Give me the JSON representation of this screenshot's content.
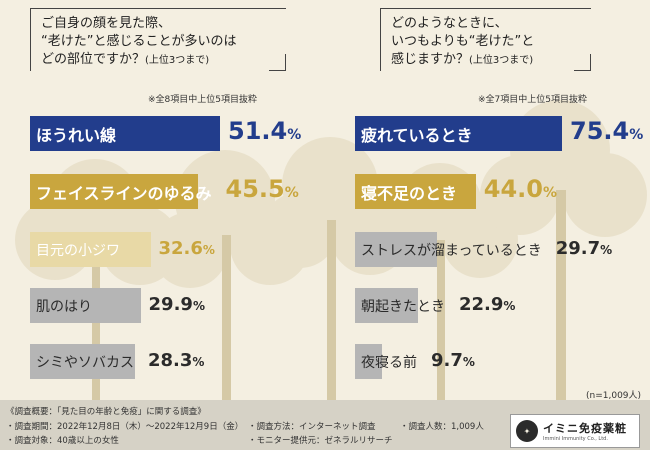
{
  "colors": {
    "navy": "#223d8c",
    "gold": "#c9a63e",
    "pale": "#e8d9a6",
    "grey": "#b5b5b5",
    "white": "#ffffff",
    "dark": "#2b2b2b"
  },
  "left_question": {
    "lines": [
      "ご自身の顔を見た際、",
      "“老けた”と感じることが多いのは",
      "どの部位ですか？"
    ],
    "suffix": "(上位3つまで)",
    "note": "※全8項目中上位5項目抜粋"
  },
  "right_question": {
    "lines": [
      "どのようなときに、",
      "いつもよりも“老けた”と",
      "感じますか？"
    ],
    "suffix": "(上位3つまで)",
    "note": "※全7項目中上位5項目抜粋"
  },
  "sample_note": "(n=1,009人)",
  "chart_data": [
    {
      "type": "bar",
      "orientation": "horizontal",
      "title": "ご自身の顔を見た際、“老けた”と感じることが多いのはどの部位ですか？(上位3つまで)",
      "unit": "%",
      "categories": [
        "ほうれい線",
        "フェイスラインのゆるみ",
        "目元の小ジワ",
        "肌のはり",
        "シミやソバカス"
      ],
      "values": [
        51.4,
        45.5,
        32.6,
        29.9,
        28.3
      ],
      "value_labels": [
        "51.4",
        "45.5",
        "32.6",
        "29.9",
        "28.3"
      ]
    },
    {
      "type": "bar",
      "orientation": "horizontal",
      "title": "どのようなときに、いつもよりも“老けた”と感じますか？(上位3つまで)",
      "unit": "%",
      "categories": [
        "疲れているとき",
        "寝不足のとき",
        "ストレスが溜まっているとき",
        "朝起きたとき",
        "夜寝る前"
      ],
      "values": [
        75.4,
        44.0,
        29.7,
        22.9,
        9.7
      ],
      "value_labels": [
        "75.4",
        "44.0",
        "29.7",
        "22.9",
        "9.7"
      ]
    }
  ],
  "footer": {
    "heading": "《調査概要：「見た目の年齢と免疫」に関する調査》",
    "period": "・調査期間：2022年12月8日（木）〜2022年12月9日（金）",
    "method": "・調査方法：インターネット調査",
    "count": "・調査人数：1,009人",
    "target": "・調査対象：40歳以上の女性",
    "provider": "・モニター提供元：ゼネラルリサーチ"
  },
  "logo": {
    "name": "イミニ免疫薬粧",
    "sub": "Immini Immunity Co., Ltd."
  }
}
